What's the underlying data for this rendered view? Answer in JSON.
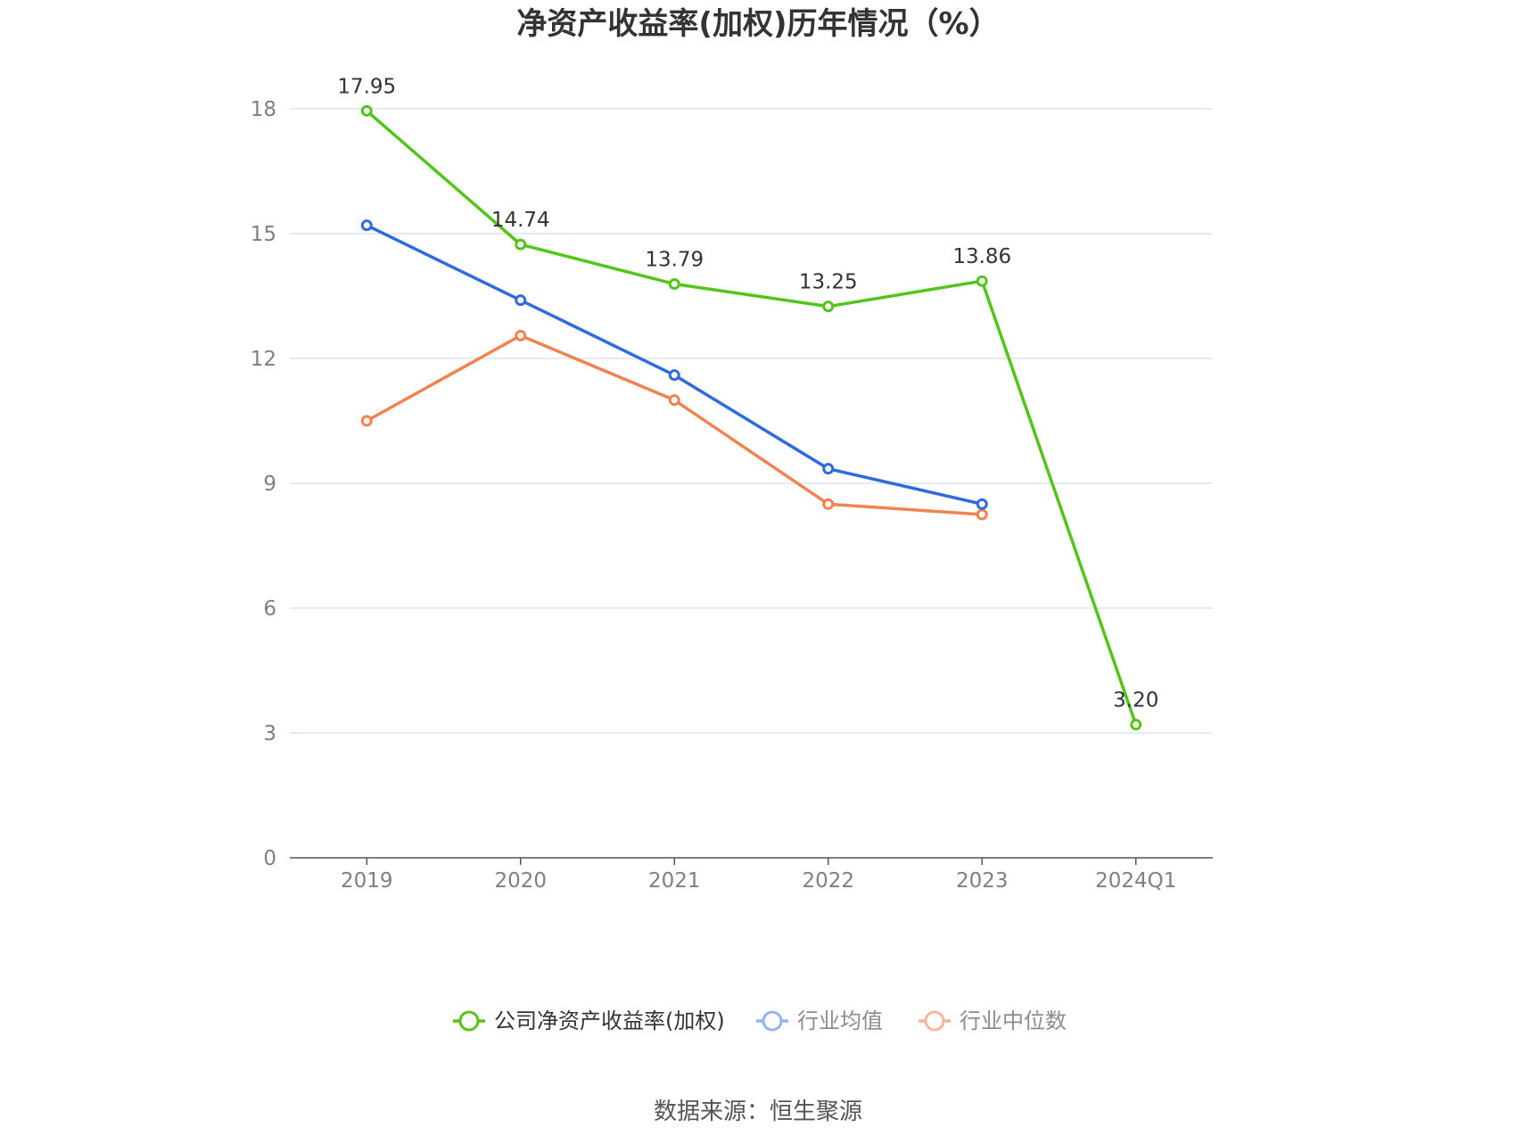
{
  "chart_data": {
    "type": "line",
    "title": "净资产收益率(加权)历年情况（%）",
    "categories": [
      "2019",
      "2020",
      "2021",
      "2022",
      "2023",
      "2024Q1"
    ],
    "ylim": [
      0,
      18
    ],
    "yticks": [
      "0",
      "3",
      "6",
      "9",
      "12",
      "15",
      "18"
    ],
    "grid": true,
    "legend_position": "bottom",
    "series": [
      {
        "name": "公司净资产收益率(加权)",
        "color": "#52c41a",
        "values": [
          17.95,
          14.74,
          13.79,
          13.25,
          13.86,
          3.2
        ],
        "labels": [
          "17.95",
          "14.74",
          "13.79",
          "13.25",
          "13.86",
          "3.20"
        ]
      },
      {
        "name": "行业均值",
        "color": "#2f6bdc",
        "legend_color": "#93b4ef",
        "values": [
          15.2,
          13.4,
          11.6,
          9.35,
          8.5,
          null
        ]
      },
      {
        "name": "行业中位数",
        "color": "#f0834f",
        "legend_color": "#f5b79a",
        "values": [
          10.5,
          12.55,
          11.0,
          8.5,
          8.25,
          null
        ]
      }
    ],
    "source": "数据来源：恒生聚源"
  }
}
